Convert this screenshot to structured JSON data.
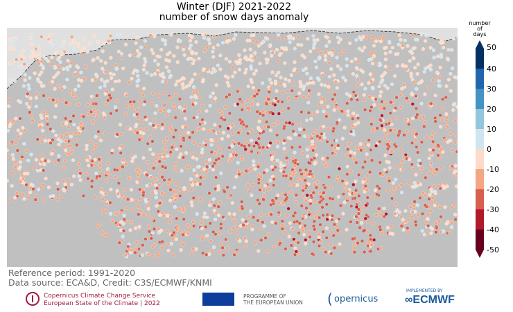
{
  "title_line1": "Winter (DJF) 2021-2022",
  "title_line2": "number of snow days anomaly",
  "colorbar": {
    "title": [
      "number",
      "of",
      "days"
    ],
    "ticks": [
      "50",
      "40",
      "30",
      "20",
      "10",
      "0",
      "-10",
      "-20",
      "-30",
      "-40",
      "-50"
    ],
    "colors": [
      "#053061",
      "#2166ac",
      "#4393c3",
      "#92c5de",
      "#d1e5f0",
      "#fddbc7",
      "#f4a582",
      "#d6604d",
      "#b2182b",
      "#67001f"
    ]
  },
  "map_colors": {
    "ocean": "#c0c0c0",
    "nodata_land": "#e0e0e0"
  },
  "footer": {
    "reference": "Reference period: 1991-2020",
    "source": "Data source: ECA&D, Credit: C3S/ECMWF/KNMI"
  },
  "logos": {
    "c3s_line1": "Copernicus Climate Change Service",
    "c3s_line2": "European State of the Climate | 2022",
    "eu_line1": "PROGRAMME OF",
    "eu_line2": "THE EUROPEAN UNION",
    "copernicus": "opernicus",
    "ecmwf_small": "IMPLEMENTED BY",
    "ecmwf": "ECMWF"
  }
}
